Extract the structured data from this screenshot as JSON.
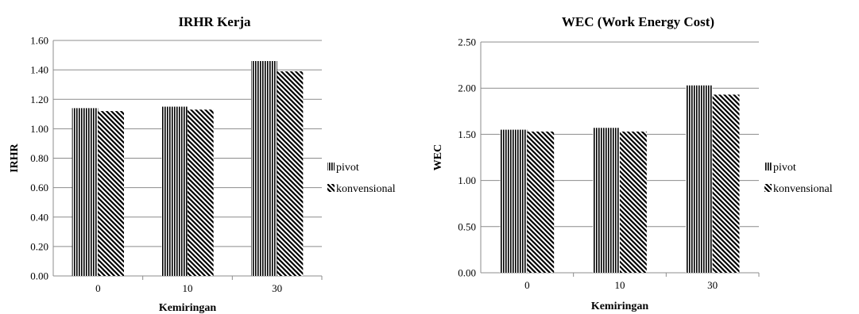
{
  "chart_data": [
    {
      "type": "bar",
      "title": "IRHR Kerja",
      "xlabel": "Kemiringan",
      "ylabel": "IRHR",
      "categories": [
        "0",
        "10",
        "30"
      ],
      "ylim": [
        0,
        1.6
      ],
      "yticks": [
        "0.00",
        "0.20",
        "0.40",
        "0.60",
        "0.80",
        "1.00",
        "1.20",
        "1.40",
        "1.60"
      ],
      "grid": true,
      "legend": "right",
      "series": [
        {
          "name": "pivot",
          "values": [
            1.14,
            1.15,
            1.46
          ]
        },
        {
          "name": "konvensional",
          "values": [
            1.12,
            1.13,
            1.39
          ]
        }
      ]
    },
    {
      "type": "bar",
      "title": "WEC (Work Energy Cost)",
      "xlabel": "Kemiringan",
      "ylabel": "WEC",
      "categories": [
        "0",
        "10",
        "30"
      ],
      "ylim": [
        0,
        2.5
      ],
      "yticks": [
        "0.00",
        "0.50",
        "1.00",
        "1.50",
        "2.00",
        "2.50"
      ],
      "grid": true,
      "legend": "right",
      "series": [
        {
          "name": "pivot",
          "values": [
            1.55,
            1.57,
            2.03
          ]
        },
        {
          "name": "konvensional",
          "values": [
            1.53,
            1.53,
            1.93
          ]
        }
      ]
    }
  ]
}
